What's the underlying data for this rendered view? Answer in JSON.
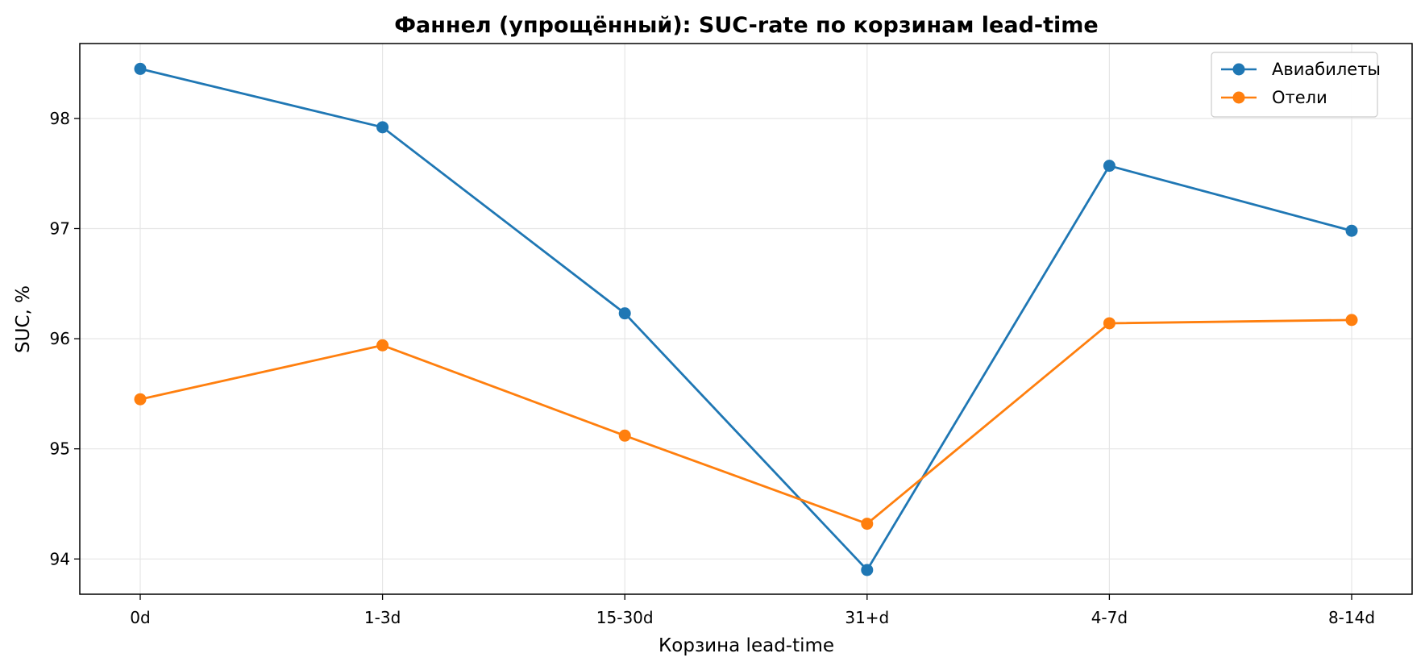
{
  "chart_data": {
    "type": "line",
    "title": "Фаннел (упрощённый): SUC-rate по корзинам lead-time",
    "xlabel": "Корзина lead-time",
    "ylabel": "SUC, %",
    "categories": [
      "0d",
      "1-3d",
      "15-30d",
      "31+d",
      "4-7d",
      "8-14d"
    ],
    "ylim": [
      93.68,
      98.68
    ],
    "yticks": [
      94,
      95,
      96,
      97,
      98
    ],
    "grid": true,
    "legend_position": "top-right",
    "series": [
      {
        "name": "Авиабилеты",
        "color": "#1f77b4",
        "values": [
          98.45,
          97.92,
          96.23,
          93.9,
          97.57,
          96.98
        ]
      },
      {
        "name": "Отели",
        "color": "#ff7f0e",
        "values": [
          95.45,
          95.94,
          95.12,
          94.32,
          96.14,
          96.17
        ]
      }
    ]
  }
}
